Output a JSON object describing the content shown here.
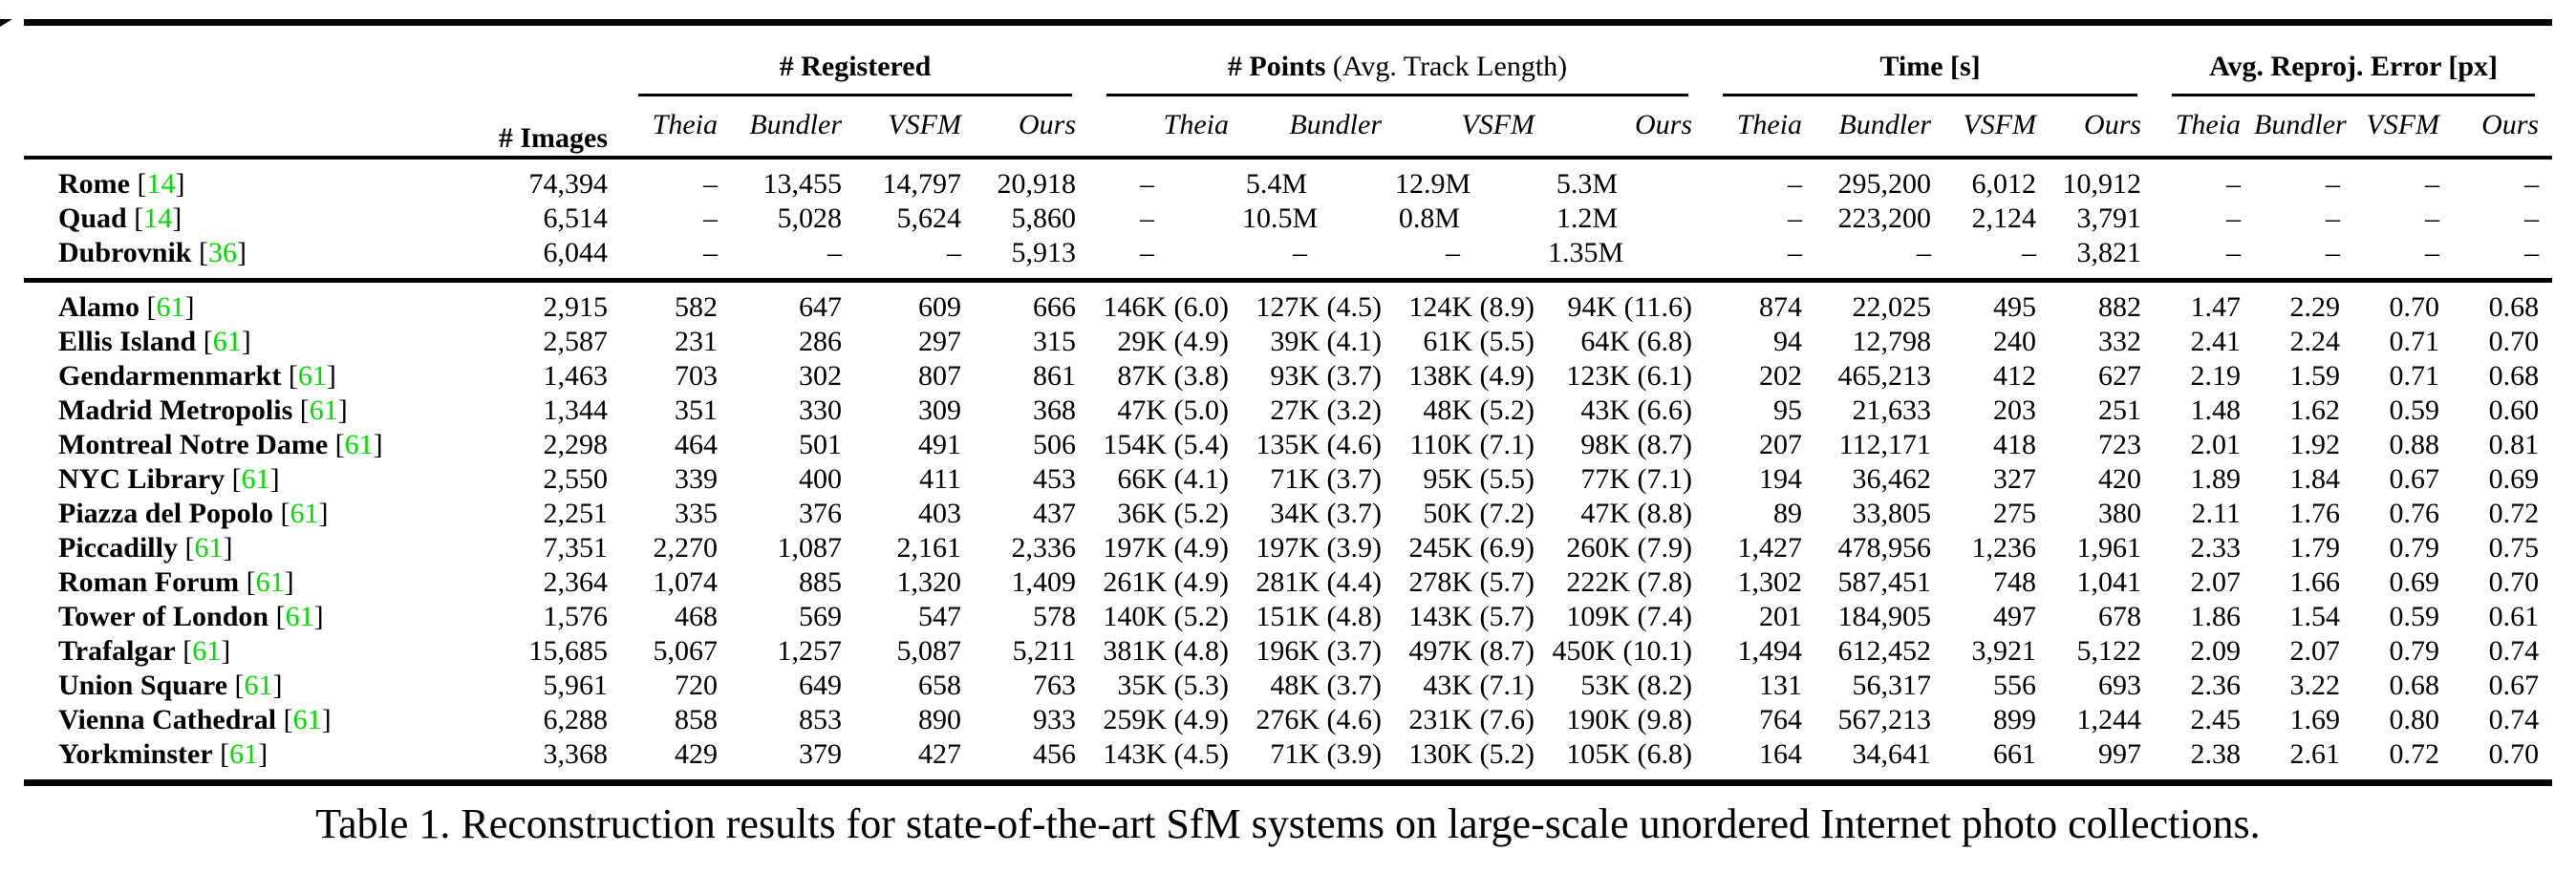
{
  "page": {
    "caption": "Table 1. Reconstruction results for state-of-the-art SfM systems on large-scale unordered Internet photo collections."
  },
  "colors": {
    "citation": "#00dc00"
  },
  "header": {
    "images": "# Images",
    "groups": [
      {
        "label": "# Registered",
        "suffix": ""
      },
      {
        "label": "# Points",
        "suffix": " (Avg. Track Length)"
      },
      {
        "label": "Time [s]",
        "suffix": ""
      },
      {
        "label": "Avg. Reproj. Error [px]",
        "suffix": ""
      }
    ],
    "methods": [
      "Theia",
      "Bundler",
      "VSFM",
      "Ours"
    ]
  },
  "blocks": [
    {
      "rows": [
        {
          "name": "Rome",
          "cite": "14",
          "images": "74,394",
          "registered": [
            "–",
            "13,455",
            "14,797",
            "20,918"
          ],
          "points": [
            "–",
            "5.4M",
            "12.9M",
            "5.3M"
          ],
          "time": [
            "–",
            "295,200",
            "6,012",
            "10,912"
          ],
          "error": [
            "–",
            "–",
            "–",
            "–"
          ]
        },
        {
          "name": "Quad",
          "cite": "14",
          "images": "6,514",
          "registered": [
            "–",
            "5,028",
            "5,624",
            "5,860"
          ],
          "points": [
            "–",
            "10.5M",
            "0.8M",
            "1.2M"
          ],
          "time": [
            "–",
            "223,200",
            "2,124",
            "3,791"
          ],
          "error": [
            "–",
            "–",
            "–",
            "–"
          ]
        },
        {
          "name": "Dubrovnik",
          "cite": "36",
          "images": "6,044",
          "registered": [
            "–",
            "–",
            "–",
            "5,913"
          ],
          "points": [
            "–",
            "–",
            "–",
            "1.35M"
          ],
          "time": [
            "–",
            "–",
            "–",
            "3,821"
          ],
          "error": [
            "–",
            "–",
            "–",
            "–"
          ]
        }
      ]
    },
    {
      "rows": [
        {
          "name": "Alamo",
          "cite": "61",
          "images": "2,915",
          "registered": [
            "582",
            "647",
            "609",
            "666"
          ],
          "points": [
            "146K (6.0)",
            "127K (4.5)",
            "124K (8.9)",
            "94K (11.6)"
          ],
          "time": [
            "874",
            "22,025",
            "495",
            "882"
          ],
          "error": [
            "1.47",
            "2.29",
            "0.70",
            "0.68"
          ]
        },
        {
          "name": "Ellis Island",
          "cite": "61",
          "images": "2,587",
          "registered": [
            "231",
            "286",
            "297",
            "315"
          ],
          "points": [
            "29K (4.9)",
            "39K (4.1)",
            "61K (5.5)",
            "64K (6.8)"
          ],
          "time": [
            "94",
            "12,798",
            "240",
            "332"
          ],
          "error": [
            "2.41",
            "2.24",
            "0.71",
            "0.70"
          ]
        },
        {
          "name": "Gendarmenmarkt",
          "cite": "61",
          "images": "1,463",
          "registered": [
            "703",
            "302",
            "807",
            "861"
          ],
          "points": [
            "87K (3.8)",
            "93K (3.7)",
            "138K (4.9)",
            "123K (6.1)"
          ],
          "time": [
            "202",
            "465,213",
            "412",
            "627"
          ],
          "error": [
            "2.19",
            "1.59",
            "0.71",
            "0.68"
          ]
        },
        {
          "name": "Madrid Metropolis",
          "cite": "61",
          "images": "1,344",
          "registered": [
            "351",
            "330",
            "309",
            "368"
          ],
          "points": [
            "47K (5.0)",
            "27K (3.2)",
            "48K (5.2)",
            "43K (6.6)"
          ],
          "time": [
            "95",
            "21,633",
            "203",
            "251"
          ],
          "error": [
            "1.48",
            "1.62",
            "0.59",
            "0.60"
          ]
        },
        {
          "name": "Montreal Notre Dame",
          "cite": "61",
          "images": "2,298",
          "registered": [
            "464",
            "501",
            "491",
            "506"
          ],
          "points": [
            "154K (5.4)",
            "135K (4.6)",
            "110K (7.1)",
            "98K (8.7)"
          ],
          "time": [
            "207",
            "112,171",
            "418",
            "723"
          ],
          "error": [
            "2.01",
            "1.92",
            "0.88",
            "0.81"
          ]
        },
        {
          "name": "NYC Library",
          "cite": "61",
          "images": "2,550",
          "registered": [
            "339",
            "400",
            "411",
            "453"
          ],
          "points": [
            "66K (4.1)",
            "71K (3.7)",
            "95K (5.5)",
            "77K (7.1)"
          ],
          "time": [
            "194",
            "36,462",
            "327",
            "420"
          ],
          "error": [
            "1.89",
            "1.84",
            "0.67",
            "0.69"
          ]
        },
        {
          "name": "Piazza del Popolo",
          "cite": "61",
          "images": "2,251",
          "registered": [
            "335",
            "376",
            "403",
            "437"
          ],
          "points": [
            "36K (5.2)",
            "34K (3.7)",
            "50K (7.2)",
            "47K (8.8)"
          ],
          "time": [
            "89",
            "33,805",
            "275",
            "380"
          ],
          "error": [
            "2.11",
            "1.76",
            "0.76",
            "0.72"
          ]
        },
        {
          "name": "Piccadilly",
          "cite": "61",
          "images": "7,351",
          "registered": [
            "2,270",
            "1,087",
            "2,161",
            "2,336"
          ],
          "points": [
            "197K (4.9)",
            "197K (3.9)",
            "245K (6.9)",
            "260K (7.9)"
          ],
          "time": [
            "1,427",
            "478,956",
            "1,236",
            "1,961"
          ],
          "error": [
            "2.33",
            "1.79",
            "0.79",
            "0.75"
          ]
        },
        {
          "name": "Roman Forum",
          "cite": "61",
          "images": "2,364",
          "registered": [
            "1,074",
            "885",
            "1,320",
            "1,409"
          ],
          "points": [
            "261K (4.9)",
            "281K (4.4)",
            "278K (5.7)",
            "222K (7.8)"
          ],
          "time": [
            "1,302",
            "587,451",
            "748",
            "1,041"
          ],
          "error": [
            "2.07",
            "1.66",
            "0.69",
            "0.70"
          ]
        },
        {
          "name": "Tower of London",
          "cite": "61",
          "images": "1,576",
          "registered": [
            "468",
            "569",
            "547",
            "578"
          ],
          "points": [
            "140K (5.2)",
            "151K (4.8)",
            "143K (5.7)",
            "109K (7.4)"
          ],
          "time": [
            "201",
            "184,905",
            "497",
            "678"
          ],
          "error": [
            "1.86",
            "1.54",
            "0.59",
            "0.61"
          ]
        },
        {
          "name": "Trafalgar",
          "cite": "61",
          "images": "15,685",
          "registered": [
            "5,067",
            "1,257",
            "5,087",
            "5,211"
          ],
          "points": [
            "381K (4.8)",
            "196K (3.7)",
            "497K (8.7)",
            "450K (10.1)"
          ],
          "time": [
            "1,494",
            "612,452",
            "3,921",
            "5,122"
          ],
          "error": [
            "2.09",
            "2.07",
            "0.79",
            "0.74"
          ]
        },
        {
          "name": "Union Square",
          "cite": "61",
          "images": "5,961",
          "registered": [
            "720",
            "649",
            "658",
            "763"
          ],
          "points": [
            "35K (5.3)",
            "48K (3.7)",
            "43K (7.1)",
            "53K (8.2)"
          ],
          "time": [
            "131",
            "56,317",
            "556",
            "693"
          ],
          "error": [
            "2.36",
            "3.22",
            "0.68",
            "0.67"
          ]
        },
        {
          "name": "Vienna Cathedral",
          "cite": "61",
          "images": "6,288",
          "registered": [
            "858",
            "853",
            "890",
            "933"
          ],
          "points": [
            "259K (4.9)",
            "276K (4.6)",
            "231K (7.6)",
            "190K (9.8)"
          ],
          "time": [
            "764",
            "567,213",
            "899",
            "1,244"
          ],
          "error": [
            "2.45",
            "1.69",
            "0.80",
            "0.74"
          ]
        },
        {
          "name": "Yorkminster",
          "cite": "61",
          "images": "3,368",
          "registered": [
            "429",
            "379",
            "427",
            "456"
          ],
          "points": [
            "143K (4.5)",
            "71K (3.9)",
            "130K (5.2)",
            "105K (6.8)"
          ],
          "time": [
            "164",
            "34,641",
            "661",
            "997"
          ],
          "error": [
            "2.38",
            "2.61",
            "0.72",
            "0.70"
          ]
        }
      ]
    }
  ]
}
